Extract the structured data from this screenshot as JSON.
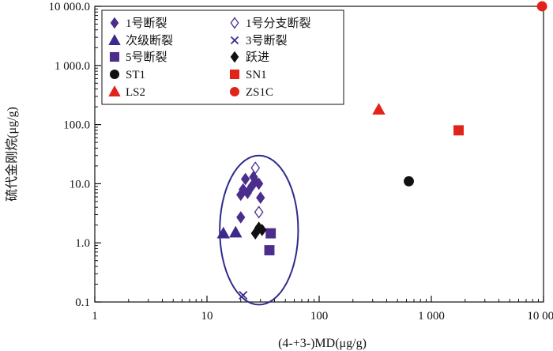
{
  "chart_data": {
    "type": "scatter",
    "xlabel": "(4-+3-)MD(μg/g)",
    "ylabel": "硫代金刚烷(μg/g)",
    "x_scale": "log",
    "y_scale": "log",
    "xlim": [
      1,
      10000
    ],
    "ylim": [
      0.1,
      10000
    ],
    "x_ticks": [
      {
        "value": 1,
        "label": "1"
      },
      {
        "value": 10,
        "label": "10"
      },
      {
        "value": 100,
        "label": "100"
      },
      {
        "value": 1000,
        "label": "1 000"
      },
      {
        "value": 10000,
        "label": "10 000"
      }
    ],
    "y_ticks": [
      {
        "value": 0.1,
        "label": "0.1"
      },
      {
        "value": 1,
        "label": "1.0"
      },
      {
        "value": 10,
        "label": "10.0"
      },
      {
        "value": 100,
        "label": "100.0"
      },
      {
        "value": 1000,
        "label": "1 000.0"
      },
      {
        "value": 10000,
        "label": "10 000.0"
      }
    ],
    "grid": false,
    "legend_position": "top-left",
    "annotations": [
      {
        "type": "ellipse",
        "color": "#2e2a8c",
        "x_range": [
          13,
          65
        ],
        "y_range": [
          0.09,
          30
        ]
      }
    ],
    "series": [
      {
        "name": "1号断裂",
        "marker": "diamond",
        "filled": true,
        "color": "#4b2e8c",
        "points": [
          [
            20,
            6.5
          ],
          [
            21,
            8
          ],
          [
            22,
            12
          ],
          [
            23,
            7
          ],
          [
            25,
            9
          ],
          [
            26,
            13
          ],
          [
            27,
            11
          ],
          [
            29,
            10
          ],
          [
            30,
            5.8
          ],
          [
            20,
            2.7
          ]
        ]
      },
      {
        "name": "1号分支断裂",
        "marker": "diamond",
        "filled": false,
        "color": "#4b2e8c",
        "points": [
          [
            27,
            18.5
          ],
          [
            29,
            3.3
          ]
        ]
      },
      {
        "name": "次级断裂",
        "marker": "triangle",
        "filled": true,
        "color": "#3d2a8a",
        "points": [
          [
            14,
            1.45
          ],
          [
            18,
            1.5
          ]
        ]
      },
      {
        "name": "3号断裂",
        "marker": "x",
        "filled": false,
        "color": "#3d2a8a",
        "points": [
          [
            21,
            0.13
          ]
        ]
      },
      {
        "name": "5号断裂",
        "marker": "square",
        "filled": true,
        "color": "#4b2e8c",
        "points": [
          [
            37,
            1.45
          ],
          [
            36,
            0.75
          ]
        ]
      },
      {
        "name": "跃进",
        "marker": "diamond",
        "filled": true,
        "color": "#111111",
        "points": [
          [
            27,
            1.45
          ],
          [
            29,
            1.8
          ],
          [
            31,
            1.65
          ]
        ]
      },
      {
        "name": "ST1",
        "marker": "circle",
        "filled": true,
        "color": "#111111",
        "points": [
          [
            630,
            11
          ]
        ]
      },
      {
        "name": "SN1",
        "marker": "square",
        "filled": true,
        "color": "#e2231a",
        "points": [
          [
            1750,
            80
          ]
        ]
      },
      {
        "name": "LS2",
        "marker": "triangle",
        "filled": true,
        "color": "#e2231a",
        "points": [
          [
            340,
            180
          ]
        ]
      },
      {
        "name": "ZS1C",
        "marker": "circle",
        "filled": true,
        "color": "#e2231a",
        "points": [
          [
            9700,
            10000
          ]
        ]
      }
    ]
  }
}
